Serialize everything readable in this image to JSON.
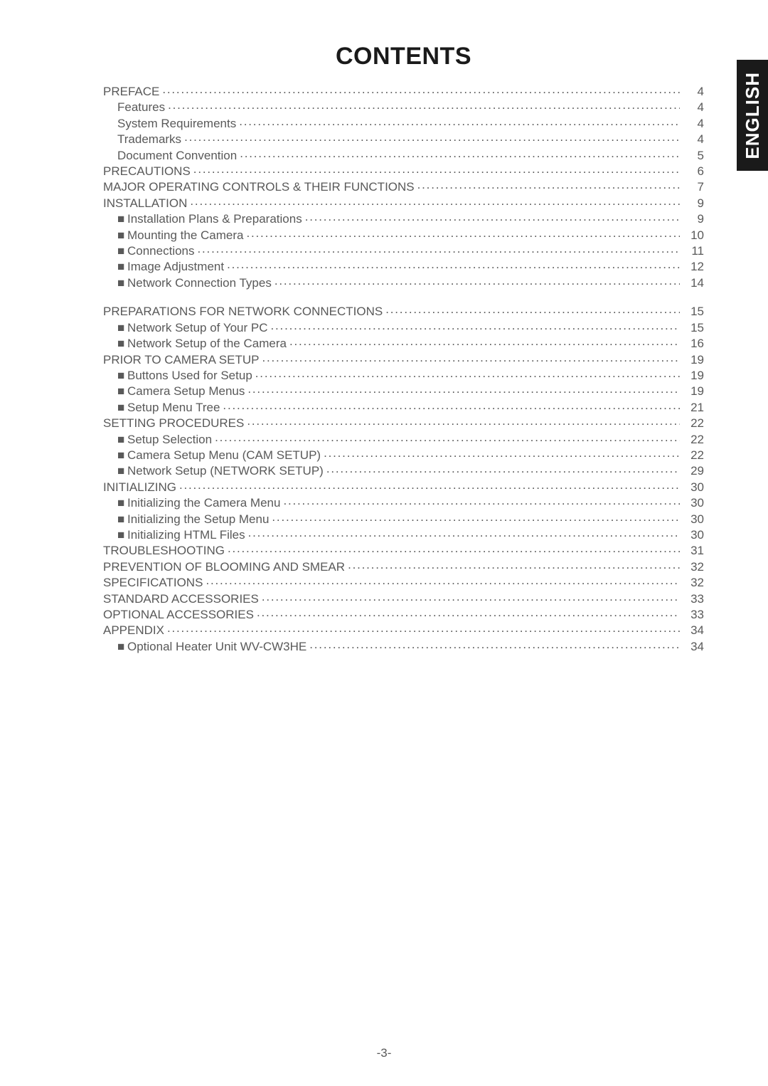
{
  "title": "CONTENTS",
  "side_tab": "ENGLISH",
  "footer": "-3-",
  "colors": {
    "page_background": "#ffffff",
    "text": "#595959",
    "title_text": "#1a1a1a",
    "tab_background": "#1a1a1a",
    "tab_text": "#ffffff"
  },
  "typography": {
    "title_fontsize_pt": 26,
    "body_fontsize_pt": 13,
    "font_family": "Arial"
  },
  "toc": [
    {
      "label": "PREFACE",
      "page": "4",
      "indent": 0,
      "bullet": false
    },
    {
      "label": "Features",
      "page": "4",
      "indent": 1,
      "bullet": false
    },
    {
      "label": "System Requirements",
      "page": "4",
      "indent": 1,
      "bullet": false
    },
    {
      "label": "Trademarks",
      "page": "4",
      "indent": 1,
      "bullet": false
    },
    {
      "label": "Document Convention",
      "page": "5",
      "indent": 1,
      "bullet": false
    },
    {
      "label": "PRECAUTIONS",
      "page": "6",
      "indent": 0,
      "bullet": false
    },
    {
      "label": "MAJOR OPERATING CONTROLS & THEIR FUNCTIONS",
      "page": "7",
      "indent": 0,
      "bullet": false
    },
    {
      "label": "INSTALLATION",
      "page": "9",
      "indent": 0,
      "bullet": false
    },
    {
      "label": "Installation Plans & Preparations",
      "page": "9",
      "indent": 1,
      "bullet": true
    },
    {
      "label": "Mounting the Camera",
      "page": "10",
      "indent": 1,
      "bullet": true
    },
    {
      "label": "Connections",
      "page": "11",
      "indent": 1,
      "bullet": true
    },
    {
      "label": "Image Adjustment",
      "page": "12",
      "indent": 1,
      "bullet": true
    },
    {
      "label": "Network Connection Types",
      "page": "14",
      "indent": 1,
      "bullet": true
    },
    {
      "gap": true
    },
    {
      "label": "PREPARATIONS FOR NETWORK CONNECTIONS",
      "page": "15",
      "indent": 0,
      "bullet": false
    },
    {
      "label": "Network Setup of Your PC",
      "page": "15",
      "indent": 1,
      "bullet": true
    },
    {
      "label": "Network Setup of the Camera",
      "page": "16",
      "indent": 1,
      "bullet": true
    },
    {
      "label": "PRIOR TO CAMERA SETUP",
      "page": "19",
      "indent": 0,
      "bullet": false
    },
    {
      "label": "Buttons Used for Setup",
      "page": "19",
      "indent": 1,
      "bullet": true
    },
    {
      "label": "Camera Setup Menus",
      "page": "19",
      "indent": 1,
      "bullet": true
    },
    {
      "label": "Setup Menu Tree",
      "page": "21",
      "indent": 1,
      "bullet": true
    },
    {
      "label": "SETTING PROCEDURES",
      "page": "22",
      "indent": 0,
      "bullet": false
    },
    {
      "label": "Setup Selection",
      "page": "22",
      "indent": 1,
      "bullet": true
    },
    {
      "label": "Camera Setup Menu (CAM SETUP)",
      "page": "22",
      "indent": 1,
      "bullet": true
    },
    {
      "label": "Network Setup (NETWORK SETUP)",
      "page": "29",
      "indent": 1,
      "bullet": true
    },
    {
      "label": "INITIALIZING",
      "page": "30",
      "indent": 0,
      "bullet": false
    },
    {
      "label": "Initializing the Camera Menu",
      "page": "30",
      "indent": 1,
      "bullet": true
    },
    {
      "label": "Initializing the Setup Menu",
      "page": "30",
      "indent": 1,
      "bullet": true
    },
    {
      "label": "Initializing HTML Files",
      "page": "30",
      "indent": 1,
      "bullet": true
    },
    {
      "label": "TROUBLESHOOTING",
      "page": "31",
      "indent": 0,
      "bullet": false
    },
    {
      "label": "PREVENTION OF BLOOMING AND SMEAR",
      "page": "32",
      "indent": 0,
      "bullet": false
    },
    {
      "label": "SPECIFICATIONS",
      "page": "32",
      "indent": 0,
      "bullet": false
    },
    {
      "label": "STANDARD ACCESSORIES",
      "page": "33",
      "indent": 0,
      "bullet": false
    },
    {
      "label": "OPTIONAL ACCESSORIES",
      "page": "33",
      "indent": 0,
      "bullet": false
    },
    {
      "label": "APPENDIX",
      "page": "34",
      "indent": 0,
      "bullet": false
    },
    {
      "label": "Optional Heater Unit WV-CW3HE",
      "page": "34",
      "indent": 1,
      "bullet": true
    }
  ]
}
